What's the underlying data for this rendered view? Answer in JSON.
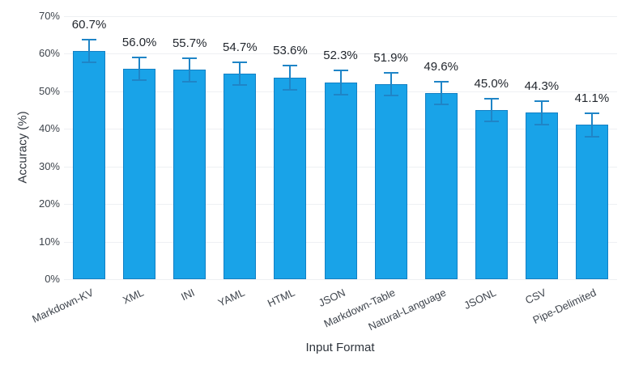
{
  "chart_data": {
    "type": "bar",
    "xlabel": "Input Format",
    "ylabel": "Accuracy (%)",
    "categories": [
      "Markdown-KV",
      "XML",
      "INI",
      "YAML",
      "HTML",
      "JSON",
      "Markdown-Table",
      "Natural-Language",
      "JSONL",
      "CSV",
      "Pipe-Delimited"
    ],
    "values": [
      60.7,
      56.0,
      55.7,
      54.7,
      53.6,
      52.3,
      51.9,
      49.6,
      45.0,
      44.3,
      41.1
    ],
    "errors": [
      3.0,
      3.1,
      3.1,
      3.1,
      3.2,
      3.2,
      3.1,
      3.0,
      3.1,
      3.1,
      3.1
    ],
    "value_labels": [
      "60.7%",
      "56.0%",
      "55.7%",
      "54.7%",
      "53.6%",
      "52.3%",
      "51.9%",
      "49.6%",
      "45.0%",
      "44.3%",
      "41.1%"
    ],
    "y_ticks": [
      "0%",
      "10%",
      "20%",
      "30%",
      "40%",
      "50%",
      "60%",
      "70%"
    ],
    "y_tick_values": [
      0,
      10,
      20,
      30,
      40,
      50,
      60,
      70
    ],
    "ylim": [
      0,
      70
    ],
    "grid": true,
    "legend": false,
    "colors": {
      "bar_fill": "#19a3e8",
      "bar_border": "#1380c4",
      "error_bar": "#1f85c7",
      "gridline": "#eef0f3",
      "tick_text": "#3e444c",
      "value_text": "#22272e",
      "axis_title_text": "#2e343c",
      "background": "#ffffff"
    }
  }
}
